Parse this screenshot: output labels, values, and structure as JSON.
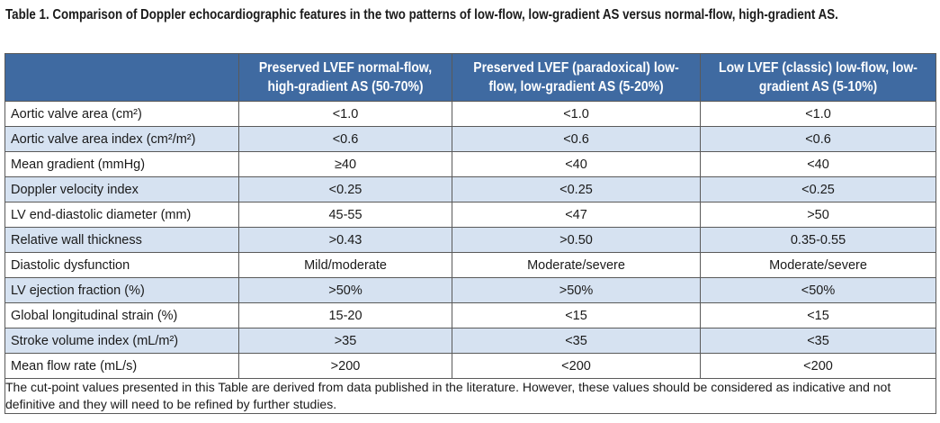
{
  "caption": "Table 1. Comparison of Doppler echocardiographic features in the two patterns of low-flow, low-gradient AS versus normal-flow, high-gradient AS.",
  "table": {
    "headers": [
      "",
      "Preserved LVEF normal-flow, high-gradient AS (50-70%)",
      "Preserved LVEF (paradoxical) low-flow, low-gradient AS (5-20%)",
      "Low LVEF (classic) low-flow, low-gradient AS (5-10%)"
    ],
    "rows": [
      {
        "label": "Aortic valve area (cm²)",
        "values": [
          "<1.0",
          "<1.0",
          "<1.0"
        ]
      },
      {
        "label": "Aortic valve area index (cm²/m²)",
        "values": [
          "<0.6",
          "<0.6",
          "<0.6"
        ]
      },
      {
        "label": "Mean gradient (mmHg)",
        "values": [
          "≥40",
          "<40",
          "<40"
        ]
      },
      {
        "label": "Doppler velocity index",
        "values": [
          "<0.25",
          "<0.25",
          "<0.25"
        ]
      },
      {
        "label": "LV end-diastolic diameter (mm)",
        "values": [
          "45-55",
          "<47",
          ">50"
        ]
      },
      {
        "label": "Relative wall thickness",
        "values": [
          ">0.43",
          ">0.50",
          "0.35-0.55"
        ]
      },
      {
        "label": "Diastolic dysfunction",
        "values": [
          "Mild/moderate",
          "Moderate/severe",
          "Moderate/severe"
        ]
      },
      {
        "label": "LV ejection fraction (%)",
        "values": [
          ">50%",
          ">50%",
          "<50%"
        ]
      },
      {
        "label": "Global longitudinal strain (%)",
        "values": [
          "15-20",
          "<15",
          "<15"
        ]
      },
      {
        "label": "Stroke volume index (mL/m²)",
        "values": [
          ">35",
          "<35",
          "<35"
        ]
      },
      {
        "label": "Mean flow rate (mL/s)",
        "values": [
          ">200",
          "<200",
          "<200"
        ]
      }
    ],
    "footnote": "The cut-point values presented in this Table are derived from data published in the literature. However, these values should be considered as indicative and not definitive and they will need to be refined by further studies."
  },
  "colors": {
    "header_bg": "#3f6aa1",
    "shaded_row_bg": "#d6e2f1",
    "border": "#5a5a5a"
  }
}
